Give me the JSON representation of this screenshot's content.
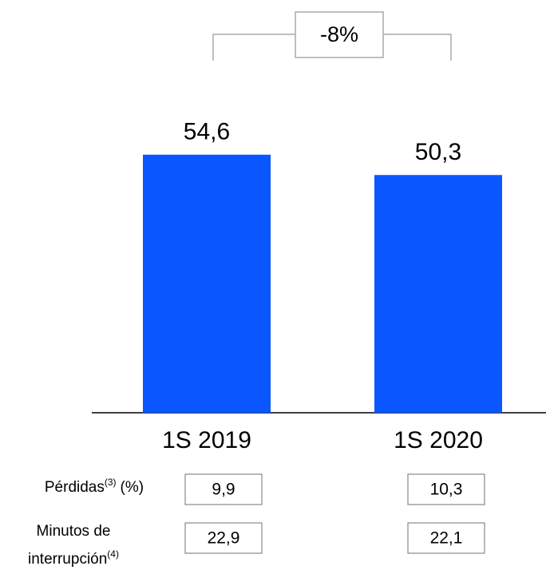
{
  "chart_data": {
    "type": "bar",
    "categories": [
      "1S 2019",
      "1S 2020"
    ],
    "values": [
      54.6,
      50.3
    ],
    "value_labels": [
      "54,6",
      "50,3"
    ],
    "color": "#0a57ff",
    "annotation": "-8%"
  },
  "table": {
    "rows": [
      {
        "label": "Pérdidas",
        "note": "(3)",
        "unit": "(%)",
        "values": [
          "9,9",
          "10,3"
        ]
      },
      {
        "label": "Minutos de",
        "label2": "interrupción",
        "note": "(4)",
        "values": [
          "22,9",
          "22,1"
        ]
      }
    ]
  }
}
